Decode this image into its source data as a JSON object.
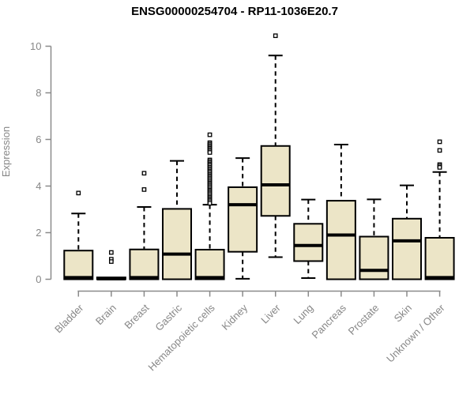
{
  "page": {
    "background": "#ffffff"
  },
  "chart_data": {
    "type": "boxplot",
    "title": "ENSG00000254704 - RP11-1036E20.7",
    "ylabel": "Expression",
    "xlabel": "",
    "ylim": [
      0,
      10.6
    ],
    "yticks": [
      0,
      2,
      4,
      6,
      8,
      10
    ],
    "grid": false,
    "legend": "none",
    "colors": {
      "box_fill": "#ECE5C7",
      "box_border": "#000000",
      "median": "#000000",
      "whisker": "#000000",
      "outlier_stroke": "#000000",
      "outlier_fill": "#ffffff",
      "axis": "#8A8A8A",
      "tick_text": "#878787",
      "title_text": "#000000"
    },
    "categories": [
      "Bladder",
      "Brain",
      "Breast",
      "Gastric",
      "Hematopoietic cells",
      "Kidney",
      "Liver",
      "Lung",
      "Pancreas",
      "Prostate",
      "Skin",
      "Unknown / Other"
    ],
    "series": [
      {
        "name": "Bladder",
        "whisker_low": 0,
        "q1": 0,
        "median": 0.07,
        "q3": 1.23,
        "whisker_high": 2.82,
        "outliers": [
          3.7
        ]
      },
      {
        "name": "Brain",
        "whisker_low": 0,
        "q1": 0,
        "median": 0.02,
        "q3": 0.08,
        "whisker_high": 0.08,
        "outliers": [
          1.15,
          0.86,
          0.76
        ]
      },
      {
        "name": "Breast",
        "whisker_low": 0,
        "q1": 0,
        "median": 0.07,
        "q3": 1.28,
        "whisker_high": 3.1,
        "outliers": [
          4.55,
          3.85
        ]
      },
      {
        "name": "Gastric",
        "whisker_low": 0,
        "q1": 0,
        "median": 1.08,
        "q3": 3.02,
        "whisker_high": 5.08,
        "outliers": []
      },
      {
        "name": "Hematopoietic cells",
        "whisker_low": 0,
        "q1": 0,
        "median": 0.07,
        "q3": 1.27,
        "whisker_high": 3.2,
        "outliers": [
          6.2,
          5.86,
          5.8,
          5.74,
          5.68,
          5.62,
          5.56,
          5.5,
          5.44,
          5.12,
          5.06,
          5.0,
          4.94,
          4.88,
          4.81,
          4.75,
          4.69,
          4.63,
          4.57,
          4.5,
          4.44,
          4.38,
          4.32,
          4.26,
          4.19,
          4.13,
          4.07,
          4.01,
          3.95,
          3.88,
          3.82,
          3.76,
          3.7,
          3.64,
          3.57,
          3.51,
          3.45,
          3.39,
          3.33,
          3.26
        ]
      },
      {
        "name": "Kidney",
        "whisker_low": 0.02,
        "q1": 1.18,
        "median": 3.2,
        "q3": 3.95,
        "whisker_high": 5.2,
        "outliers": []
      },
      {
        "name": "Liver",
        "whisker_low": 0.95,
        "q1": 2.72,
        "median": 4.05,
        "q3": 5.72,
        "whisker_high": 9.6,
        "outliers": [
          10.45
        ]
      },
      {
        "name": "Lung",
        "whisker_low": 0.05,
        "q1": 0.78,
        "median": 1.45,
        "q3": 2.38,
        "whisker_high": 3.42,
        "outliers": []
      },
      {
        "name": "Pancreas",
        "whisker_low": 0,
        "q1": 0,
        "median": 1.9,
        "q3": 3.37,
        "whisker_high": 5.78,
        "outliers": []
      },
      {
        "name": "Prostate",
        "whisker_low": 0,
        "q1": 0,
        "median": 0.38,
        "q3": 1.83,
        "whisker_high": 3.43,
        "outliers": []
      },
      {
        "name": "Skin",
        "whisker_low": 0,
        "q1": 0,
        "median": 1.65,
        "q3": 2.6,
        "whisker_high": 4.03,
        "outliers": []
      },
      {
        "name": "Unknown / Other",
        "whisker_low": 0,
        "q1": 0,
        "median": 0.07,
        "q3": 1.78,
        "whisker_high": 4.6,
        "outliers": [
          5.9,
          5.53,
          4.92,
          4.86,
          4.8
        ]
      }
    ]
  }
}
